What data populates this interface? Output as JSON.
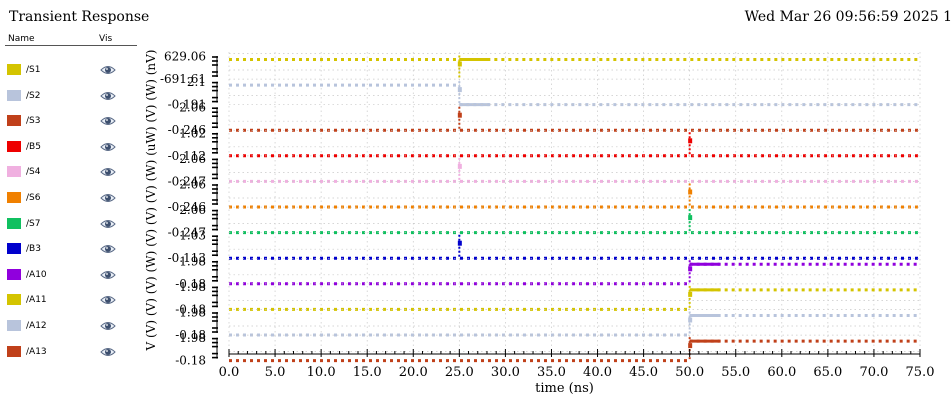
{
  "window": {
    "title": "Transient Response",
    "timestamp": "Wed Mar 26 09:56:59 2025   1"
  },
  "legend": {
    "name_header": "Name",
    "vis_header": "Vis",
    "eye_icon": "eye-icon"
  },
  "chart_data": {
    "type": "line",
    "xlabel": "time (ns)",
    "ylabel": "V (V)  (V)  (V)  (W)  (V)  (V)  (V)  (W)  (uW)  (V)  (W)  (nV)",
    "xlim": [
      0.0,
      75.0
    ],
    "x_ticks": [
      "0.0",
      "5.0",
      "10.0",
      "15.0",
      "20.0",
      "25.0",
      "30.0",
      "35.0",
      "40.0",
      "45.0",
      "50.0",
      "55.0",
      "60.0",
      "65.0",
      "70.0",
      "75.0"
    ],
    "grid": true,
    "series": [
      {
        "name": "/S1",
        "color": "#d4c400",
        "ymax": "629.06",
        "ymin": "-691.61",
        "segments": [
          {
            "x0": 0,
            "x1": 25,
            "level": "high"
          },
          {
            "x0": 25,
            "x1": 75,
            "level": "high"
          }
        ],
        "events": [
          25
        ]
      },
      {
        "name": "/S2",
        "color": "#b8c4dc",
        "ymax": "2.1",
        "ymin": "-0.191",
        "segments": [
          {
            "x0": 0,
            "x1": 25,
            "level": "high"
          },
          {
            "x0": 25,
            "x1": 75,
            "level": "low"
          }
        ],
        "events": [
          25
        ]
      },
      {
        "name": "/S3",
        "color": "#c0401a",
        "ymax": "2.06",
        "ymin": "-0.246",
        "segments": [
          {
            "x0": 0,
            "x1": 75,
            "level": "low"
          }
        ],
        "events": [
          25
        ]
      },
      {
        "name": "/B5",
        "color": "#ee0000",
        "ymax": "1.02",
        "ymin": "-0.112",
        "segments": [
          {
            "x0": 0,
            "x1": 75,
            "level": "low"
          }
        ],
        "events": [
          50
        ]
      },
      {
        "name": "/S4",
        "color": "#f0b0e0",
        "ymax": "2.06",
        "ymin": "-0.247",
        "segments": [
          {
            "x0": 0,
            "x1": 75,
            "level": "low"
          }
        ],
        "events": [
          25
        ]
      },
      {
        "name": "/S6",
        "color": "#f08000",
        "ymax": "2.06",
        "ymin": "-0.246",
        "segments": [
          {
            "x0": 0,
            "x1": 75,
            "level": "low"
          }
        ],
        "events": [
          50
        ]
      },
      {
        "name": "/S7",
        "color": "#10c060",
        "ymax": "2.06",
        "ymin": "-0.247",
        "segments": [
          {
            "x0": 0,
            "x1": 75,
            "level": "low"
          }
        ],
        "events": [
          50
        ]
      },
      {
        "name": "/B3",
        "color": "#0000cc",
        "ymax": "1.03",
        "ymin": "-0.113",
        "segments": [
          {
            "x0": 0,
            "x1": 75,
            "level": "low"
          }
        ],
        "events": [
          25
        ]
      },
      {
        "name": "/A10",
        "color": "#9000dd",
        "ymax": "1.98",
        "ymin": "-0.18",
        "segments": [
          {
            "x0": 0,
            "x1": 50,
            "level": "low"
          },
          {
            "x0": 50,
            "x1": 75,
            "level": "high"
          }
        ],
        "events": [
          50
        ]
      },
      {
        "name": "/A11",
        "color": "#d4c400",
        "ymax": "1.98",
        "ymin": "-0.18",
        "segments": [
          {
            "x0": 0,
            "x1": 50,
            "level": "low"
          },
          {
            "x0": 50,
            "x1": 75,
            "level": "high"
          }
        ],
        "events": [
          50
        ]
      },
      {
        "name": "/A12",
        "color": "#b8c4dc",
        "ymax": "1.98",
        "ymin": "-0.18",
        "segments": [
          {
            "x0": 0,
            "x1": 50,
            "level": "low"
          },
          {
            "x0": 50,
            "x1": 75,
            "level": "high"
          }
        ],
        "events": [
          50
        ]
      },
      {
        "name": "/A13",
        "color": "#c0401a",
        "ymax": "1.98",
        "ymin": "-0.18",
        "segments": [
          {
            "x0": 0,
            "x1": 50,
            "level": "low"
          },
          {
            "x0": 50,
            "x1": 75,
            "level": "high"
          }
        ],
        "events": [
          50
        ]
      }
    ]
  }
}
